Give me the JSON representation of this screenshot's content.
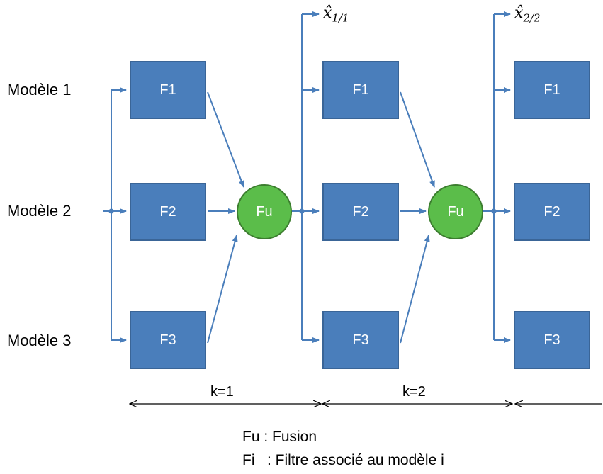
{
  "models": [
    "Modèle 1",
    "Modèle 2",
    "Modèle 3"
  ],
  "columns": [
    {
      "filters": [
        "F1",
        "F2",
        "F3"
      ],
      "fusion": "Fu"
    },
    {
      "filters": [
        "F1",
        "F2",
        "F3"
      ],
      "fusion": "Fu"
    },
    {
      "filters": [
        "F1",
        "F2",
        "F3"
      ]
    }
  ],
  "outputs": [
    {
      "symbol": "x̂",
      "subscript": "1/1"
    },
    {
      "symbol": "x̂",
      "subscript": "2/2"
    }
  ],
  "steps": [
    "k=1",
    "k=2"
  ],
  "legend": {
    "fu": "Fu : Fusion",
    "fi": "Fi   : Filtre associé au modèle i"
  },
  "colors": {
    "filter_box": "#4a7ebb",
    "fusion_node": "#5bbd4a",
    "connector": "#4a7ebb"
  }
}
